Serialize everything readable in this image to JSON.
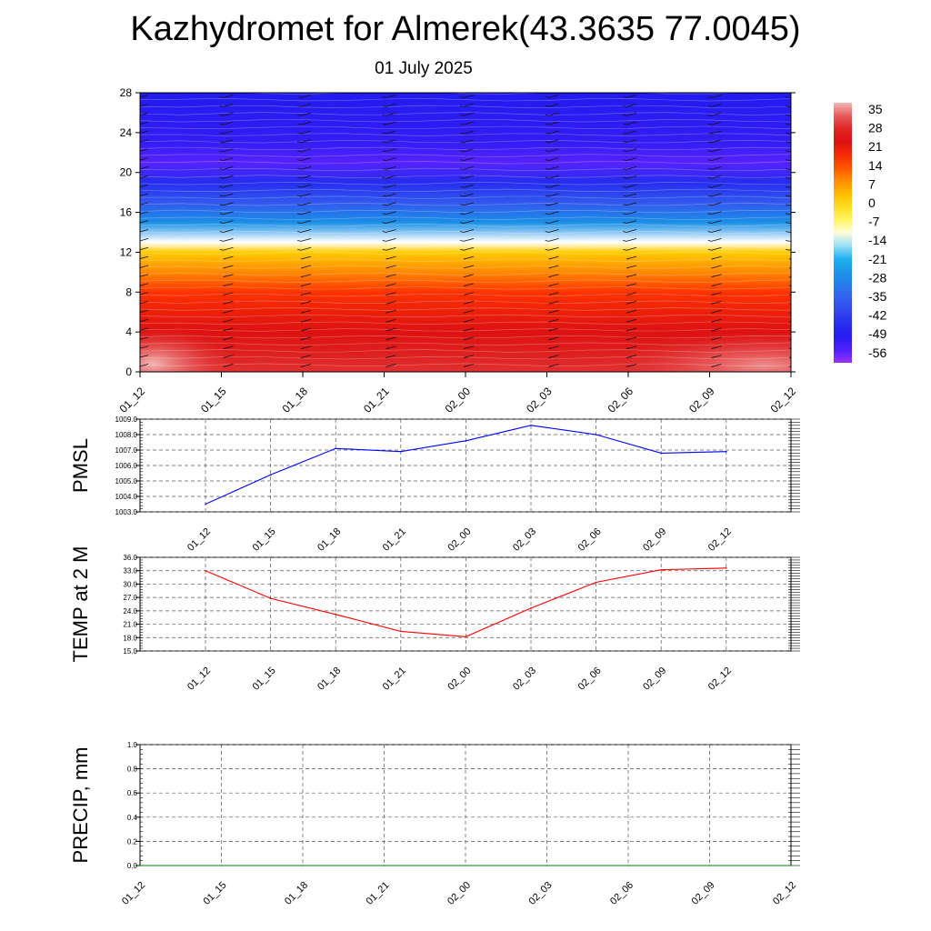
{
  "header": {
    "title": "Kazhydromet for Almerek(43.3635 77.0045)",
    "subtitle": "01 July 2025"
  },
  "chart_data": [
    {
      "type": "heatmap",
      "panel": "cross-section",
      "x_ticks": [
        "01_12",
        "01_15",
        "01_18",
        "01_21",
        "02_00",
        "02_03",
        "02_06",
        "02_09",
        "02_12"
      ],
      "y_ticks": [
        "0",
        "4",
        "8",
        "12",
        "16",
        "20",
        "24",
        "28"
      ],
      "ylim": [
        0,
        28
      ],
      "colorbar_labels": [
        "35",
        "28",
        "21",
        "14",
        "7",
        "0",
        "-7",
        "-14",
        "-21",
        "-28",
        "-35",
        "-42",
        "-49",
        "-56"
      ],
      "temperature_by_level": [
        {
          "level": 0,
          "value": 28
        },
        {
          "level": 2,
          "value": 24
        },
        {
          "level": 4,
          "value": 21
        },
        {
          "level": 6,
          "value": 18
        },
        {
          "level": 8,
          "value": 14
        },
        {
          "level": 10,
          "value": 7
        },
        {
          "level": 12,
          "value": 0
        },
        {
          "level": 13,
          "value": -14
        },
        {
          "level": 15,
          "value": -28
        },
        {
          "level": 17,
          "value": -38
        },
        {
          "level": 19,
          "value": -46
        },
        {
          "level": 21,
          "value": -56
        },
        {
          "level": 23,
          "value": -52
        },
        {
          "level": 28,
          "value": -50
        }
      ],
      "colors": {
        "warm_max": "#f2b8b8",
        "red": "#dd1111",
        "orange": "#ff6a00",
        "yellow": "#fff44f",
        "cyan": "#21b8f0",
        "blue": "#1a1aee",
        "violet": "#9933ff"
      },
      "wind_barbs": true
    },
    {
      "type": "line",
      "panel": "pmsl",
      "ylabel": "PMSL",
      "categories": [
        "01_12",
        "01_15",
        "01_18",
        "01_21",
        "02_00",
        "02_03",
        "02_06",
        "02_09",
        "02_12"
      ],
      "values": [
        1003.5,
        1005.4,
        1007.1,
        1006.9,
        1007.6,
        1008.6,
        1008.0,
        1006.8,
        1006.9
      ],
      "ylim": [
        1003.0,
        1009.0
      ],
      "y_ticks": [
        "1003.0",
        "1004.0",
        "1005.0",
        "1006.0",
        "1007.0",
        "1008.0",
        "1009.0"
      ],
      "color": "#0000ff",
      "grid": true
    },
    {
      "type": "line",
      "panel": "temp2m",
      "ylabel": "TEMP at 2 M",
      "categories": [
        "01_12",
        "01_15",
        "01_18",
        "01_21",
        "02_00",
        "02_03",
        "02_06",
        "02_09",
        "02_12"
      ],
      "values": [
        33.0,
        26.8,
        23.2,
        19.4,
        18.2,
        24.6,
        30.4,
        33.2,
        33.6
      ],
      "ylim": [
        15.0,
        36.0
      ],
      "y_ticks": [
        "15.0",
        "18.0",
        "21.0",
        "24.0",
        "27.0",
        "30.0",
        "33.0",
        "36.0"
      ],
      "color": "#ff0000",
      "grid": true
    },
    {
      "type": "line",
      "panel": "precip",
      "ylabel": "PRECIP, mm",
      "x_ticks": [
        "01_12",
        "01_15",
        "01_18",
        "01_21",
        "02_00",
        "02_03",
        "02_06",
        "02_09",
        "02_12"
      ],
      "values": [
        0,
        0,
        0,
        0,
        0,
        0,
        0,
        0,
        0
      ],
      "ylim": [
        0.0,
        1.0
      ],
      "y_ticks": [
        "0.0",
        "0.2",
        "0.4",
        "0.6",
        "0.8",
        "1.0"
      ],
      "color": "#008000",
      "grid": true
    }
  ]
}
